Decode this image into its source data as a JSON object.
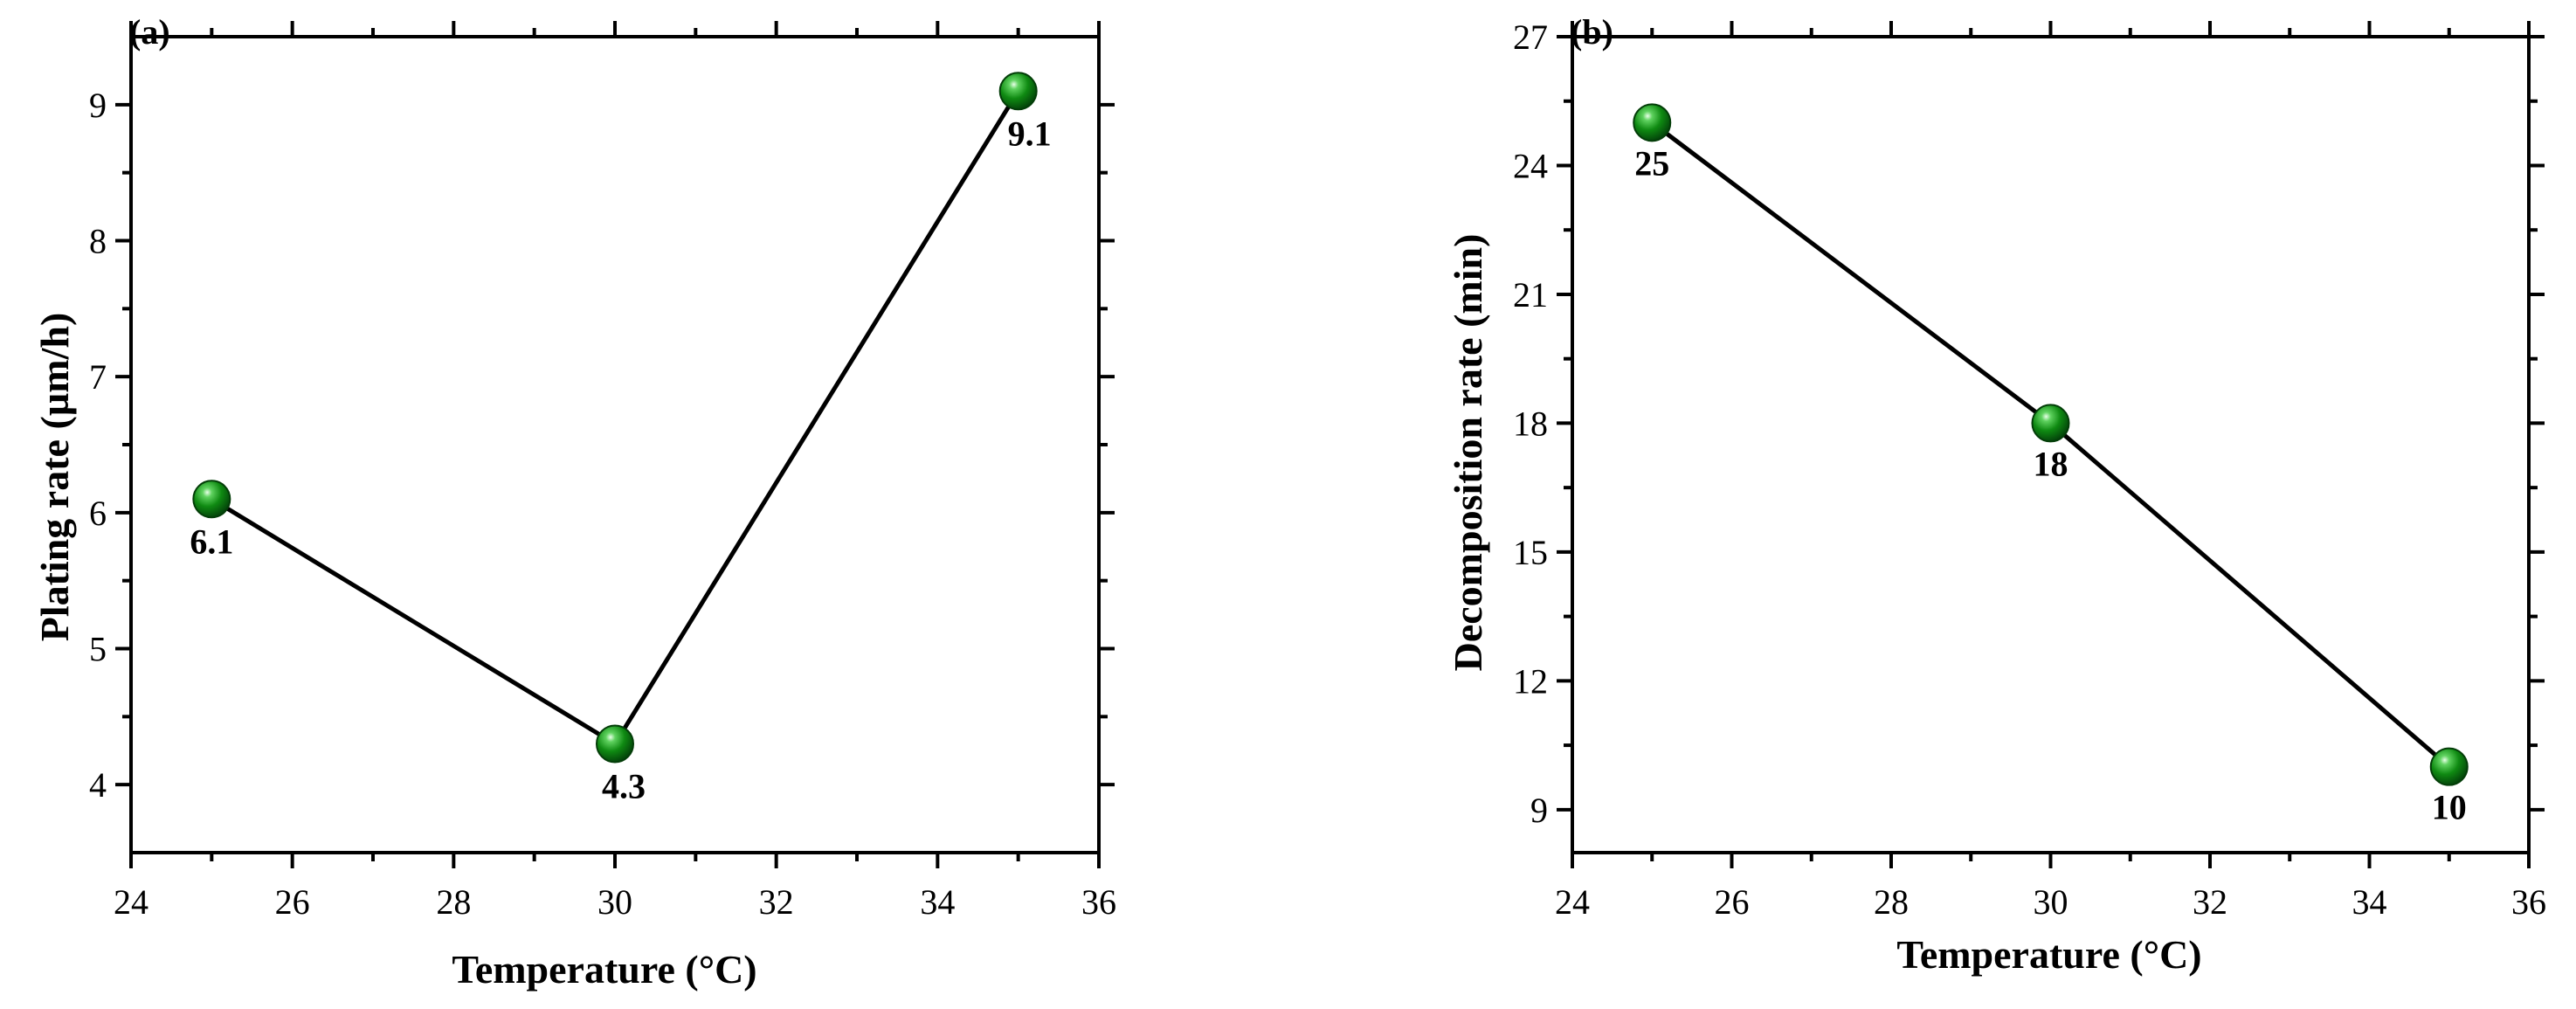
{
  "chart_data": [
    {
      "type": "line",
      "panel_label": "(a)",
      "title": "",
      "xlabel": "Temperature (°C)",
      "ylabel": "Plating rate (µm/h)",
      "xlim": [
        24,
        36
      ],
      "ylim": [
        3.5,
        9.5
      ],
      "xticks": [
        24,
        26,
        28,
        30,
        32,
        34,
        36
      ],
      "yticks": [
        4,
        5,
        6,
        7,
        8,
        9
      ],
      "grid": false,
      "marker_color": "#0f8a12",
      "line_color": "#000000",
      "series": [
        {
          "x": [
            25,
            30,
            35
          ],
          "values": [
            6.1,
            4.3,
            9.1
          ],
          "labels": [
            "6.1",
            "4.3",
            "9.1"
          ]
        }
      ]
    },
    {
      "type": "line",
      "panel_label": "(b)",
      "title": "",
      "xlabel": "Temperature (°C)",
      "ylabel": "Decomposition rate (min)",
      "xlim": [
        24,
        36
      ],
      "ylim": [
        8,
        27
      ],
      "xticks": [
        24,
        26,
        28,
        30,
        32,
        34,
        36
      ],
      "yticks": [
        9,
        12,
        15,
        18,
        21,
        24,
        27
      ],
      "grid": false,
      "marker_color": "#0f8a12",
      "line_color": "#000000",
      "series": [
        {
          "x": [
            25,
            30,
            35
          ],
          "values": [
            25,
            18,
            10
          ],
          "labels": [
            "25",
            "18",
            "10"
          ]
        }
      ]
    }
  ]
}
